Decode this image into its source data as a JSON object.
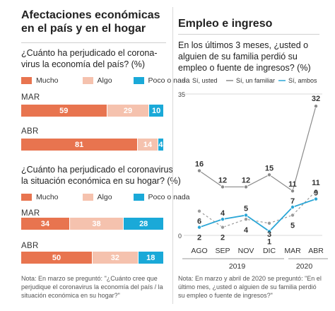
{
  "left": {
    "title_line1": "Afectaciones económicas",
    "title_line2": "en el país y en el hogar",
    "q1_line1": "¿Cuánto ha perjudicado el corona-",
    "q1_line2": "virus la economía del país?  (%)",
    "q2_line1": "¿Cuánto ha perjudicado el coronavirus",
    "q2_line2": "la situación económica en su hogar? (%)",
    "legend": [
      "Mucho",
      "Algo",
      "Poco o nada"
    ],
    "colors": {
      "mucho": "#e8744f",
      "algo": "#f5c2ae",
      "poco": "#1aa9d8"
    },
    "note_line1": "Nota: En marzo se preguntó: \"¿Cuánto cree que",
    "note_line2": "perjudique el coronavirus la economía del país /  la",
    "note_line3": "situación económica en su hogar?\""
  },
  "right": {
    "title": "Empleo e ingreso",
    "q_line1": "En los últimos 3 meses, ¿usted o",
    "q_line2": "alguien de su familia perdió su",
    "q_line3": "empleo o fuente de ingresos?  (%)",
    "note_line1": "Nota: En marzo y abril de 2020 se preguntó: \"En el",
    "note_line2": "último mes, ¿usted o alguien de su familia perdió",
    "note_line3": "su empleo o fuente de ingresos?\""
  },
  "chart_data": [
    {
      "type": "bar",
      "stacked": true,
      "orientation": "horizontal",
      "categories": [
        "MAR",
        "ABR"
      ],
      "series": [
        {
          "name": "Mucho",
          "values": [
            59,
            81
          ]
        },
        {
          "name": "Algo",
          "values": [
            29,
            14
          ]
        },
        {
          "name": "Poco o nada",
          "values": [
            10,
            4
          ]
        }
      ]
    },
    {
      "type": "bar",
      "stacked": true,
      "orientation": "horizontal",
      "categories": [
        "MAR",
        "ABR"
      ],
      "series": [
        {
          "name": "Mucho",
          "values": [
            34,
            50
          ]
        },
        {
          "name": "Algo",
          "values": [
            38,
            32
          ]
        },
        {
          "name": "Poco o nada",
          "values": [
            28,
            18
          ]
        }
      ]
    },
    {
      "type": "line",
      "categories": [
        "AGO",
        "SEP",
        "NOV",
        "DIC",
        "MAR",
        "ABR"
      ],
      "year_labels": [
        "2019",
        "2020"
      ],
      "yticks": [
        "0",
        "35"
      ],
      "ylim": [
        0,
        35
      ],
      "series": [
        {
          "name": "Sí, usted",
          "color": "#9a9a9a",
          "dash": "3,3",
          "values": [
            6,
            2,
            4,
            3,
            5,
            11
          ]
        },
        {
          "name": "Sí, un familiar",
          "color": "#8a8a8a",
          "dash": "",
          "values": [
            16,
            12,
            12,
            15,
            11,
            32
          ]
        },
        {
          "name": "Sí, ambos",
          "color": "#2aa6d6",
          "dash": "",
          "values": [
            2,
            4,
            5,
            1,
            7,
            9
          ]
        }
      ]
    }
  ]
}
